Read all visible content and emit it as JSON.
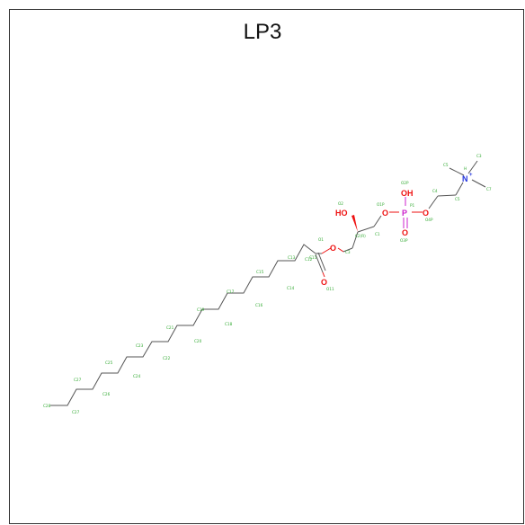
{
  "title": "LP3",
  "heteroatoms": {
    "hydroxyl_top": "OH",
    "phosphorus": "P",
    "oxygen_phosphate_left": "O",
    "oxygen_phosphate_right": "O",
    "oxygen_double_bond": "O",
    "hydroxyl_glycerol": "HO",
    "oxygen_ester": "O",
    "oxygen_carbonyl": "O",
    "nitrogen": "N",
    "nitrogen_charge": "+"
  },
  "atom_labels": {
    "n_h": "H",
    "c_top": "C3",
    "c_left": "C5",
    "c_right": "C7",
    "c4": "C4",
    "c5b": "C5",
    "o2p_top": "O2P",
    "p1": "P1",
    "o4p": "O4P",
    "o3p": "O3P",
    "o1p_mid": "O1P",
    "o2": "O2",
    "c2r": "C2(R)",
    "c1": "C1",
    "c3": "C3",
    "o1": "O1",
    "c11": "C11",
    "o11": "O11",
    "c12": "C12",
    "c13": "C13",
    "c14": "C14",
    "c15": "C15",
    "c16": "C16",
    "c17": "C17",
    "c18": "C18",
    "c19": "C19",
    "c20": "C20",
    "c21": "C21",
    "c22": "C22",
    "c23": "C23",
    "c24": "C24",
    "c25": "C25",
    "c26": "C26",
    "c27": "C27",
    "c28": "C28"
  },
  "colors": {
    "carbon_label": "#33aa33",
    "oxygen": "#ee1111",
    "phosphorus": "#cc22cc",
    "nitrogen": "#2233dd",
    "bond": "#555555"
  }
}
